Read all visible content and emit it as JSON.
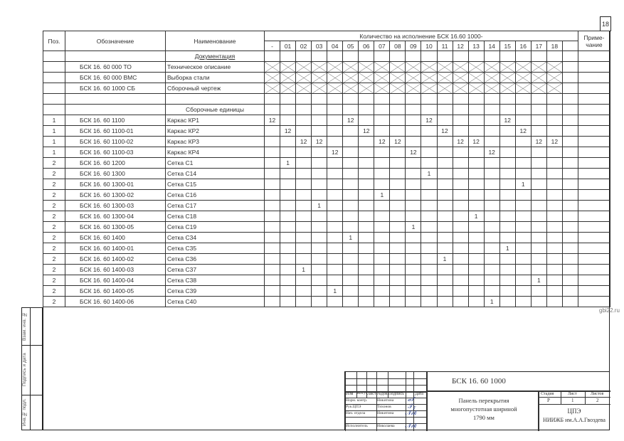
{
  "sheet_number": "18",
  "header": {
    "pos": "Поз.",
    "designation": "Обозначение",
    "name": "Наименование",
    "quantity": "Количество на исполнение БСК 16.60   1000-",
    "note": "Приме-\nчание",
    "variants": [
      "-",
      "01",
      "02",
      "03",
      "04",
      "05",
      "06",
      "07",
      "08",
      "09",
      "10",
      "11",
      "12",
      "13",
      "14",
      "15",
      "16",
      "17",
      "18",
      ""
    ]
  },
  "sections": {
    "documentation": "Документация",
    "assemblies": "Сборочные единицы"
  },
  "documents": [
    {
      "designation": "БСК 16. 60   000  ТО",
      "name": "Техническое описание"
    },
    {
      "designation": "БСК 16. 60   000  ВМС",
      "name": "Выборка стали"
    },
    {
      "designation": "БСК 16. 60   1000  СБ",
      "name": "Сборочный чертеж"
    }
  ],
  "items": [
    {
      "pos": "1",
      "designation": "БСК 16. 60   1100",
      "name": "Каркас КР1",
      "qty": {
        "-": "12",
        "05": "12",
        "10": "12",
        "15": "12"
      }
    },
    {
      "pos": "1",
      "designation": "БСК 16. 60   1100-01",
      "name": "Каркас КР2",
      "qty": {
        "01": "12",
        "06": "12",
        "11": "12",
        "16": "12"
      }
    },
    {
      "pos": "1",
      "designation": "БСК 16. 60   1100-02",
      "name": "Каркас КР3",
      "qty": {
        "02": "12",
        "03": "12",
        "07": "12",
        "08": "12",
        "12": "12",
        "13": "12",
        "17": "12",
        "18": "12"
      }
    },
    {
      "pos": "1",
      "designation": "БСК 16. 60   1100-03",
      "name": "Каркас КР4",
      "qty": {
        "04": "12",
        "09": "12",
        "14": "12"
      }
    },
    {
      "pos": "2",
      "designation": "БСК 16. 60   1200",
      "name": "Сетка С1",
      "qty": {
        "01": "1"
      }
    },
    {
      "pos": "2",
      "designation": "БСК 16. 60   1300",
      "name": "Сетка С14",
      "qty": {
        "10": "1"
      }
    },
    {
      "pos": "2",
      "designation": "БСК 16. 60   1300-01",
      "name": "Сетка С15",
      "qty": {
        "16": "1"
      }
    },
    {
      "pos": "2",
      "designation": "БСК 16. 60   1300-02",
      "name": "Сетка С16",
      "qty": {
        "07": "1"
      }
    },
    {
      "pos": "2",
      "designation": "БСК 16. 60   1300-03",
      "name": "Сетка С17",
      "qty": {
        "03": "1"
      }
    },
    {
      "pos": "2",
      "designation": "БСК 16. 60   1300-04",
      "name": "Сетка С18",
      "qty": {
        "13": "1"
      }
    },
    {
      "pos": "2",
      "designation": "БСК 16. 60   1300-05",
      "name": "Сетка С19",
      "qty": {
        "09": "1"
      }
    },
    {
      "pos": "2",
      "designation": "БСК 16. 60   1400",
      "name": "Сетка С34",
      "qty": {
        "05": "1"
      }
    },
    {
      "pos": "2",
      "designation": "БСК 16. 60   1400-01",
      "name": "Сетка С35",
      "qty": {
        "15": "1"
      }
    },
    {
      "pos": "2",
      "designation": "БСК 16. 60   1400-02",
      "name": "Сетка С36",
      "qty": {
        "11": "1"
      }
    },
    {
      "pos": "2",
      "designation": "БСК 16. 60   1400-03",
      "name": "Сетка С37",
      "qty": {
        "02": "1"
      }
    },
    {
      "pos": "2",
      "designation": "БСК 16. 60   1400-04",
      "name": "Сетка С38",
      "qty": {
        "17": "1"
      }
    },
    {
      "pos": "2",
      "designation": "БСК 16. 60   1400-05",
      "name": "Сетка С39",
      "qty": {
        "04": "1"
      }
    },
    {
      "pos": "2",
      "designation": "БСК 16. 60   1400-06",
      "name": "Сетка С40",
      "qty": {
        "14": "1"
      }
    }
  ],
  "side_stamp": [
    "Взам. инв. №",
    "Подпись и дата",
    "Инв.№ подл."
  ],
  "title_block": {
    "columns": [
      "Изм",
      "Кол.уч",
      "Лист",
      "№док",
      "Подпись",
      "Дата"
    ],
    "people": [
      {
        "role": "Норм. контр.",
        "name": "Никитина"
      },
      {
        "role": "Рук.ЦПЭ",
        "name": "Тихонов"
      },
      {
        "role": "Нач. отдела",
        "name": "Никитина"
      },
      {
        "role": "Исполнитель",
        "name": "Николаева"
      }
    ],
    "code": "БСК 16. 60          1000",
    "title": "Панель перекрытия многопустотная шириной  1790 мм",
    "stage_label": "Стадия",
    "sheet_label": "Лист",
    "sheets_label": "Листов",
    "stage": "Р",
    "sheet": "1",
    "sheets": "2",
    "org1": "ЦПЭ",
    "org2": "НИИЖБ им.А.А.Гвоздева"
  },
  "watermark": "gbi22.ru"
}
